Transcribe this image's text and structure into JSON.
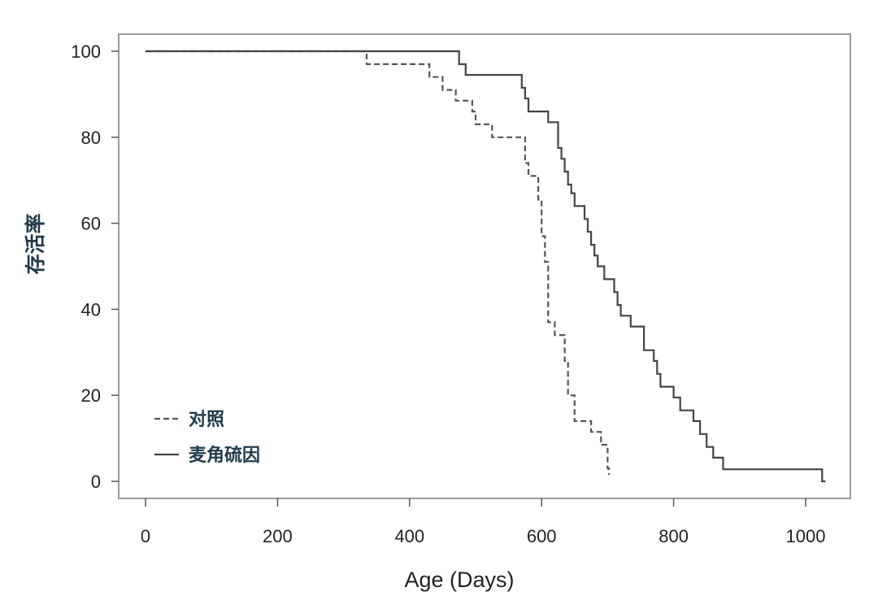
{
  "chart_data": {
    "type": "line",
    "step": true,
    "xlabel": "Age (Days)",
    "ylabel": "存活率",
    "xlim": [
      0,
      1050
    ],
    "ylim": [
      -3,
      104
    ],
    "xticks": [
      0,
      200,
      400,
      600,
      800,
      1000
    ],
    "yticks": [
      0,
      20,
      40,
      60,
      80,
      100
    ],
    "grid": false,
    "legend_position": "bottom-left",
    "series": [
      {
        "name": "对照",
        "style": "dashed",
        "color": "#555555",
        "x": [
          0,
          335,
          430,
          450,
          470,
          495,
          500,
          525,
          575,
          580,
          595,
          600,
          605,
          610,
          620,
          635,
          640,
          650,
          660,
          675,
          690,
          700,
          702
        ],
        "y": [
          100,
          97,
          94,
          91,
          88.5,
          86,
          83,
          80,
          74,
          71,
          65.5,
          57,
          51,
          37,
          34,
          28,
          20,
          14,
          14,
          11.5,
          8.5,
          3,
          1.5
        ]
      },
      {
        "name": "麦角硫因",
        "style": "solid",
        "color": "#444444",
        "x": [
          0,
          475,
          485,
          495,
          570,
          575,
          580,
          590,
          610,
          625,
          630,
          635,
          640,
          645,
          650,
          655,
          665,
          670,
          675,
          680,
          685,
          690,
          695,
          710,
          715,
          720,
          735,
          745,
          755,
          770,
          775,
          780,
          785,
          800,
          810,
          830,
          840,
          850,
          860,
          870,
          875,
          925,
          930,
          1025,
          1030
        ],
        "y": [
          100,
          97,
          94.5,
          94.5,
          91.5,
          89,
          86,
          86,
          83.5,
          77.5,
          75,
          72,
          69,
          67,
          64,
          64,
          61,
          58,
          55,
          52.5,
          50,
          50,
          47,
          44,
          41,
          38.5,
          36,
          36,
          30.5,
          28,
          25,
          22,
          22,
          19.5,
          16.5,
          14,
          11,
          8,
          5.5,
          5.5,
          2.8,
          2.8,
          2.8,
          0,
          0
        ]
      }
    ]
  }
}
